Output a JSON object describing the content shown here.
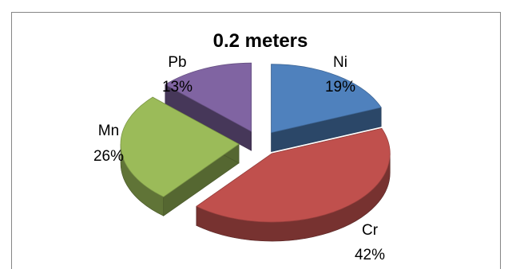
{
  "chart_data": {
    "type": "pie",
    "title": "0.2 meters",
    "style": "3d-exploded",
    "slices": [
      {
        "name": "Ni",
        "label": "19%",
        "value": 19,
        "color": "#4f81bd"
      },
      {
        "name": "Cr",
        "label": "42%",
        "value": 42,
        "color": "#c0504d"
      },
      {
        "name": "Mn",
        "label": "26%",
        "value": 26,
        "color": "#9bbb59"
      },
      {
        "name": "Pb",
        "label": "13%",
        "value": 13,
        "color": "#8064a2"
      }
    ]
  }
}
